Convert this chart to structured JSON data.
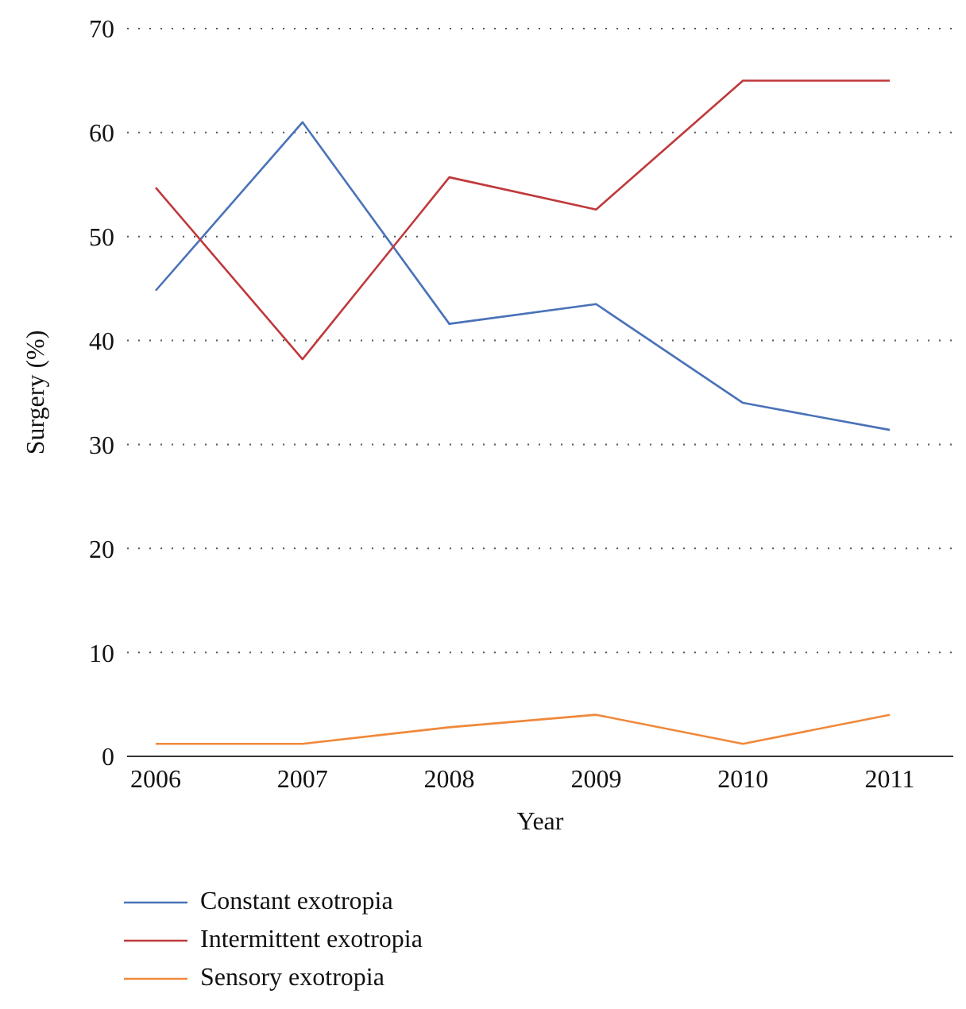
{
  "chart_data": {
    "type": "line",
    "xlabel": "Year",
    "ylabel": "Surgery (%)",
    "categories": [
      "2006",
      "2007",
      "2008",
      "2009",
      "2010",
      "2011"
    ],
    "series": [
      {
        "name": "Constant exotropia",
        "color": "#4a72b8",
        "values": [
          44.8,
          61,
          41.6,
          43.5,
          34,
          31.4
        ]
      },
      {
        "name": "Intermittent exotropia",
        "color": "#c0393b",
        "values": [
          54.7,
          38.2,
          55.7,
          52.6,
          65,
          65
        ]
      },
      {
        "name": "Sensory exotropia",
        "color": "#f0883a",
        "values": [
          1.2,
          1.2,
          2.8,
          4,
          1.2,
          4
        ]
      }
    ],
    "ylim": [
      0,
      70
    ],
    "yticks": [
      0,
      10,
      20,
      30,
      40,
      50,
      60,
      70
    ],
    "grid": "y",
    "legend": "bottom",
    "marker": "none",
    "line_style": "solid"
  }
}
